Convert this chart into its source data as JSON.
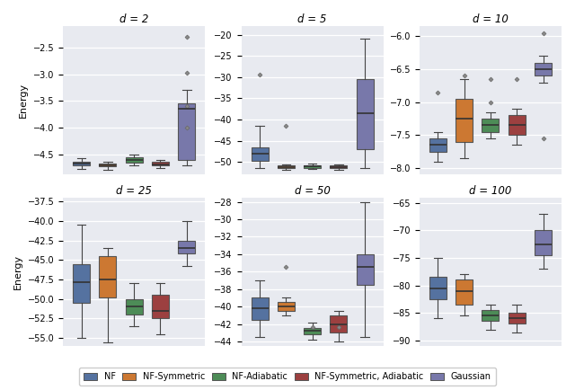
{
  "titles": [
    "d = 2",
    "d = 5",
    "d = 10",
    "d = 25",
    "d = 50",
    "d = 100"
  ],
  "colors": {
    "NF": "#5572a0",
    "NF-Symmetric": "#cc7832",
    "NF-Adiabatic": "#4d8c57",
    "NF-Symmetric, Adiabatic": "#9c4040",
    "Gaussian": "#7878aa"
  },
  "legend_labels": [
    "NF",
    "NF-Symmetric",
    "NF-Adiabatic",
    "NF-Symmetric, Adiabatic",
    "Gaussian"
  ],
  "background_color": "#e8eaf0",
  "boxes": {
    "d2": [
      {
        "q1": -4.71,
        "med": -4.67,
        "q3": -4.63,
        "whislo": -4.78,
        "whishi": -4.57,
        "fliers": []
      },
      {
        "q1": -4.73,
        "med": -4.7,
        "q3": -4.67,
        "whislo": -4.79,
        "whishi": -4.63,
        "fliers": []
      },
      {
        "q1": -4.65,
        "med": -4.6,
        "q3": -4.56,
        "whislo": -4.71,
        "whishi": -4.5,
        "fliers": []
      },
      {
        "q1": -4.71,
        "med": -4.68,
        "q3": -4.64,
        "whislo": -4.76,
        "whishi": -4.61,
        "fliers": []
      },
      {
        "q1": -4.6,
        "med": -3.65,
        "q3": -3.55,
        "whislo": -4.7,
        "whishi": -3.3,
        "fliers": [
          -2.3,
          -2.98,
          -3.6,
          -4.0
        ]
      }
    ],
    "d5": [
      {
        "q1": -49.8,
        "med": -48.0,
        "q3": -46.5,
        "whislo": -51.5,
        "whishi": -41.5,
        "fliers": [
          -29.5
        ]
      },
      {
        "q1": -51.5,
        "med": -51.2,
        "q3": -50.9,
        "whislo": -51.8,
        "whishi": -50.5,
        "fliers": [
          -41.5
        ]
      },
      {
        "q1": -51.4,
        "med": -51.1,
        "q3": -50.8,
        "whislo": -51.7,
        "whishi": -50.4,
        "fliers": []
      },
      {
        "q1": -51.5,
        "med": -51.2,
        "q3": -50.9,
        "whislo": -51.8,
        "whishi": -50.5,
        "fliers": []
      },
      {
        "q1": -47.0,
        "med": -38.5,
        "q3": -30.5,
        "whislo": -51.5,
        "whishi": -21.0,
        "fliers": []
      }
    ],
    "d10": [
      {
        "q1": -7.75,
        "med": -7.65,
        "q3": -7.55,
        "whislo": -7.9,
        "whishi": -7.45,
        "fliers": [
          -6.85
        ]
      },
      {
        "q1": -7.6,
        "med": -7.25,
        "q3": -6.95,
        "whislo": -7.85,
        "whishi": -6.65,
        "fliers": [
          -6.6
        ]
      },
      {
        "q1": -7.45,
        "med": -7.35,
        "q3": -7.25,
        "whislo": -7.55,
        "whishi": -7.15,
        "fliers": [
          -7.0,
          -6.65
        ]
      },
      {
        "q1": -7.5,
        "med": -7.35,
        "q3": -7.2,
        "whislo": -7.65,
        "whishi": -7.1,
        "fliers": [
          -6.65
        ]
      },
      {
        "q1": -6.6,
        "med": -6.5,
        "q3": -6.4,
        "whislo": -6.7,
        "whishi": -6.3,
        "fliers": [
          -5.95,
          -7.55
        ]
      }
    ],
    "d25": [
      {
        "q1": -50.5,
        "med": -47.8,
        "q3": -45.5,
        "whislo": -55.0,
        "whishi": -40.5,
        "fliers": []
      },
      {
        "q1": -49.8,
        "med": -47.5,
        "q3": -44.5,
        "whislo": -55.5,
        "whishi": -43.5,
        "fliers": []
      },
      {
        "q1": -52.0,
        "med": -51.0,
        "q3": -50.0,
        "whislo": -53.5,
        "whishi": -48.0,
        "fliers": []
      },
      {
        "q1": -52.5,
        "med": -51.5,
        "q3": -49.5,
        "whislo": -54.5,
        "whishi": -48.0,
        "fliers": []
      },
      {
        "q1": -44.2,
        "med": -43.5,
        "q3": -42.5,
        "whislo": -45.8,
        "whishi": -40.0,
        "fliers": []
      }
    ],
    "d50": [
      {
        "q1": -41.5,
        "med": -40.2,
        "q3": -39.0,
        "whislo": -43.5,
        "whishi": -37.0,
        "fliers": []
      },
      {
        "q1": -40.5,
        "med": -40.0,
        "q3": -39.5,
        "whislo": -41.0,
        "whishi": -39.0,
        "fliers": [
          -35.5
        ]
      },
      {
        "q1": -43.2,
        "med": -42.8,
        "q3": -42.4,
        "whislo": -43.8,
        "whishi": -41.8,
        "fliers": [
          -42.3
        ]
      },
      {
        "q1": -43.0,
        "med": -42.0,
        "q3": -41.0,
        "whislo": -44.0,
        "whishi": -40.5,
        "fliers": [
          -42.3
        ]
      },
      {
        "q1": -37.5,
        "med": -35.5,
        "q3": -34.0,
        "whislo": -43.5,
        "whishi": -28.0,
        "fliers": []
      }
    ],
    "d100": [
      {
        "q1": -82.5,
        "med": -80.5,
        "q3": -78.5,
        "whislo": -86.0,
        "whishi": -75.0,
        "fliers": []
      },
      {
        "q1": -83.5,
        "med": -81.0,
        "q3": -79.0,
        "whislo": -85.5,
        "whishi": -78.0,
        "fliers": []
      },
      {
        "q1": -86.5,
        "med": -85.5,
        "q3": -84.5,
        "whislo": -88.0,
        "whishi": -83.5,
        "fliers": []
      },
      {
        "q1": -87.0,
        "med": -86.0,
        "q3": -85.0,
        "whislo": -88.5,
        "whishi": -83.5,
        "fliers": []
      },
      {
        "q1": -74.5,
        "med": -72.5,
        "q3": -70.0,
        "whislo": -77.0,
        "whishi": -67.0,
        "fliers": []
      }
    ]
  },
  "ylims": {
    "d2": [
      -4.88,
      -2.1
    ],
    "d5": [
      -53.0,
      -18.0
    ],
    "d10": [
      -8.1,
      -5.85
    ],
    "d25": [
      -56.0,
      -37.0
    ],
    "d50": [
      -44.5,
      -27.5
    ],
    "d100": [
      -91.0,
      -64.0
    ]
  },
  "yticks": {
    "d2": [
      -4.5,
      -4.0,
      -3.5,
      -3.0,
      -2.5
    ],
    "d5": [
      -50,
      -45,
      -40,
      -35,
      -30,
      -25,
      -20
    ],
    "d10": [
      -8.0,
      -7.5,
      -7.0,
      -6.5,
      -6.0
    ],
    "d25": [
      -55.0,
      -52.5,
      -50.0,
      -47.5,
      -45.0,
      -42.5,
      -40.0,
      -37.5
    ],
    "d50": [
      -44,
      -42,
      -40,
      -38,
      -36,
      -34,
      -32,
      -30,
      -28
    ],
    "d100": [
      -90,
      -85,
      -80,
      -75,
      -70,
      -65
    ]
  }
}
